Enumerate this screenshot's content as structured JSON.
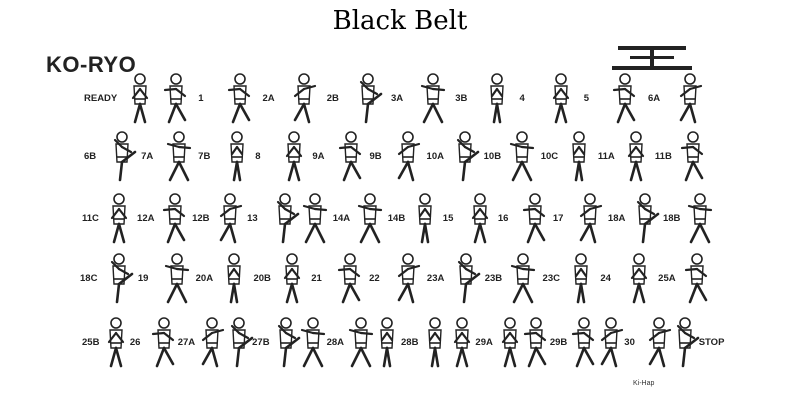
{
  "document": {
    "title": "Black Belt",
    "form_name": "KO-RYO",
    "note": "Ki-Hap"
  },
  "rows": [
    {
      "labels": [
        {
          "text": "READY",
          "figs": 2
        },
        {
          "text": "1",
          "figs": 1
        },
        {
          "text": "2A",
          "figs": 1
        },
        {
          "text": "2B",
          "figs": 1
        },
        {
          "text": "3A",
          "figs": 1
        },
        {
          "text": "3B",
          "figs": 1
        },
        {
          "text": "4",
          "figs": 1
        },
        {
          "text": "5",
          "figs": 1
        },
        {
          "text": "6A",
          "figs": 1
        }
      ]
    },
    {
      "labels": [
        {
          "text": "6B",
          "figs": 1
        },
        {
          "text": "7A",
          "figs": 1
        },
        {
          "text": "7B",
          "figs": 1
        },
        {
          "text": "8",
          "figs": 1
        },
        {
          "text": "9A",
          "figs": 1
        },
        {
          "text": "9B",
          "figs": 1
        },
        {
          "text": "10A",
          "figs": 1
        },
        {
          "text": "10B",
          "figs": 1
        },
        {
          "text": "10C",
          "figs": 1
        },
        {
          "text": "11A",
          "figs": 1
        },
        {
          "text": "11B",
          "figs": 1
        }
      ]
    },
    {
      "labels": [
        {
          "text": "11C",
          "figs": 1
        },
        {
          "text": "12A",
          "figs": 1
        },
        {
          "text": "12B",
          "figs": 1
        },
        {
          "text": "13",
          "figs": 2
        },
        {
          "text": "14A",
          "figs": 1
        },
        {
          "text": "14B",
          "figs": 1
        },
        {
          "text": "15",
          "figs": 1
        },
        {
          "text": "16",
          "figs": 1
        },
        {
          "text": "17",
          "figs": 1
        },
        {
          "text": "18A",
          "figs": 1
        },
        {
          "text": "18B",
          "figs": 1
        }
      ]
    },
    {
      "labels": [
        {
          "text": "18C",
          "figs": 1
        },
        {
          "text": "19",
          "figs": 1
        },
        {
          "text": "20A",
          "figs": 1
        },
        {
          "text": "20B",
          "figs": 1
        },
        {
          "text": "21",
          "figs": 1
        },
        {
          "text": "22",
          "figs": 1
        },
        {
          "text": "23A",
          "figs": 1
        },
        {
          "text": "23B",
          "figs": 1
        },
        {
          "text": "23C",
          "figs": 1
        },
        {
          "text": "24",
          "figs": 1
        },
        {
          "text": "25A",
          "figs": 1
        }
      ]
    },
    {
      "labels": [
        {
          "text": "25B",
          "figs": 1
        },
        {
          "text": "26",
          "figs": 1
        },
        {
          "text": "27A",
          "figs": 2
        },
        {
          "text": "27B",
          "figs": 2
        },
        {
          "text": "28A",
          "figs": 2
        },
        {
          "text": "28B",
          "figs": 2
        },
        {
          "text": "29A",
          "figs": 2
        },
        {
          "text": "29B",
          "figs": 2
        },
        {
          "text": "30",
          "figs": 2
        },
        {
          "text": "STOP",
          "figs": 0
        }
      ]
    }
  ]
}
